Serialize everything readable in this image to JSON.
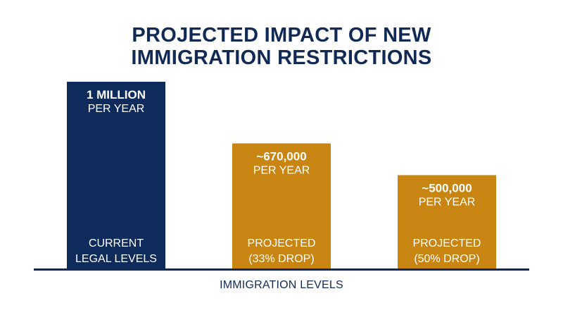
{
  "chart_data": {
    "type": "bar",
    "title": [
      "PROJECTED IMPACT OF NEW",
      "IMMIGRATION RESTRICTIONS"
    ],
    "xlabel": "IMMIGRATION LEVELS",
    "ylabel": "",
    "ylim": [
      0,
      1000000
    ],
    "categories": [
      [
        "CURRENT",
        "LEGAL LEVELS"
      ],
      [
        "PROJECTED",
        "(33% DROP)"
      ],
      [
        "PROJECTED",
        "(50% DROP)"
      ]
    ],
    "values": [
      1000000,
      670000,
      500000
    ],
    "value_labels": [
      "1 MILLION",
      "~670,000",
      "~500,000"
    ],
    "unit_label": "PER YEAR",
    "colors": [
      "#0f2b5b",
      "#c98512",
      "#c98512"
    ],
    "axis_color": "#112a55"
  }
}
